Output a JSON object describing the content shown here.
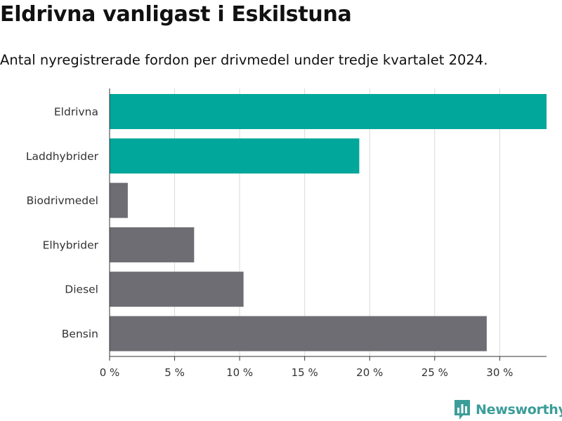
{
  "title": "Eldrivna vanligast i Eskilstuna",
  "subtitle": "Antal nyregistrerade fordon per drivmedel under tredje kvartalet 2024.",
  "brand": {
    "name": "Newsworthy",
    "color": "#3b9d99",
    "icon": "newsworthy-logo-icon"
  },
  "colors": {
    "highlight": "#00a79a",
    "default": "#6e6d73",
    "grid": "#d9d9d9",
    "axis": "#333333"
  },
  "chart_data": {
    "type": "bar",
    "orientation": "horizontal",
    "categories": [
      "Eldrivna",
      "Laddhybrider",
      "Biodrivmedel",
      "Elhybrider",
      "Diesel",
      "Bensin"
    ],
    "values": [
      33.6,
      19.2,
      1.4,
      6.5,
      10.3,
      29.0
    ],
    "highlighted": [
      true,
      true,
      false,
      false,
      false,
      false
    ],
    "xlim": [
      0,
      33.6
    ],
    "xticks": [
      0,
      5,
      10,
      15,
      20,
      25,
      30
    ],
    "xtick_labels": [
      "0 %",
      "5 %",
      "10 %",
      "15 %",
      "20 %",
      "25 %",
      "30 %"
    ],
    "grid": true
  }
}
